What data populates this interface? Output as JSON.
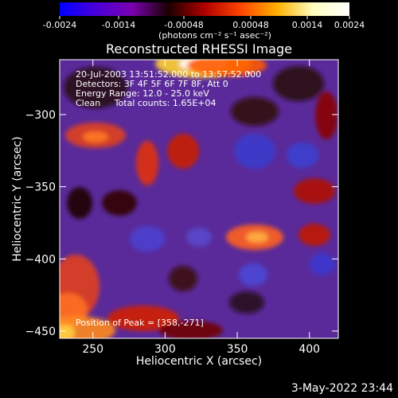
{
  "colorbar": {
    "ticks": [
      "-0.0024",
      "-0.0014",
      "-0.00048",
      "0.00048",
      "0.0014",
      "0.0024"
    ],
    "unit_label": "(photons cm⁻² s⁻¹ asec⁻²)",
    "stops": [
      "#0000ff",
      "#4a00d9",
      "#7a00b0",
      "#1a0000",
      "#b00000",
      "#ff4400",
      "#ffb000",
      "#ffffc0",
      "#ffffff"
    ]
  },
  "chart_data": {
    "type": "heatmap",
    "title": "Reconstructed RHESSI Image",
    "xlabel": "Heliocentric X (arcsec)",
    "ylabel": "Heliocentric Y (arcsec)",
    "xlim": [
      227,
      420
    ],
    "ylim": [
      -455,
      -262
    ],
    "xticks": [
      250,
      300,
      350,
      400
    ],
    "yticks": [
      -300,
      -350,
      -400,
      -450
    ],
    "clim": [
      -0.0024,
      0.0024
    ],
    "peak": [
      358,
      -271
    ],
    "annotations": [
      "20-Jul-2003 13:51:52.000 to 13:57:52.000",
      "Detectors: 3F 4F 5F 6F 7F 8F, Att 0",
      "Energy Range: 12.0 - 25.0 keV",
      "Clean     Total counts: 1.65E+04"
    ],
    "peak_label": "Position of Peak = [358,-271]"
  },
  "footer": {
    "date": "3-May-2022 23:44"
  }
}
